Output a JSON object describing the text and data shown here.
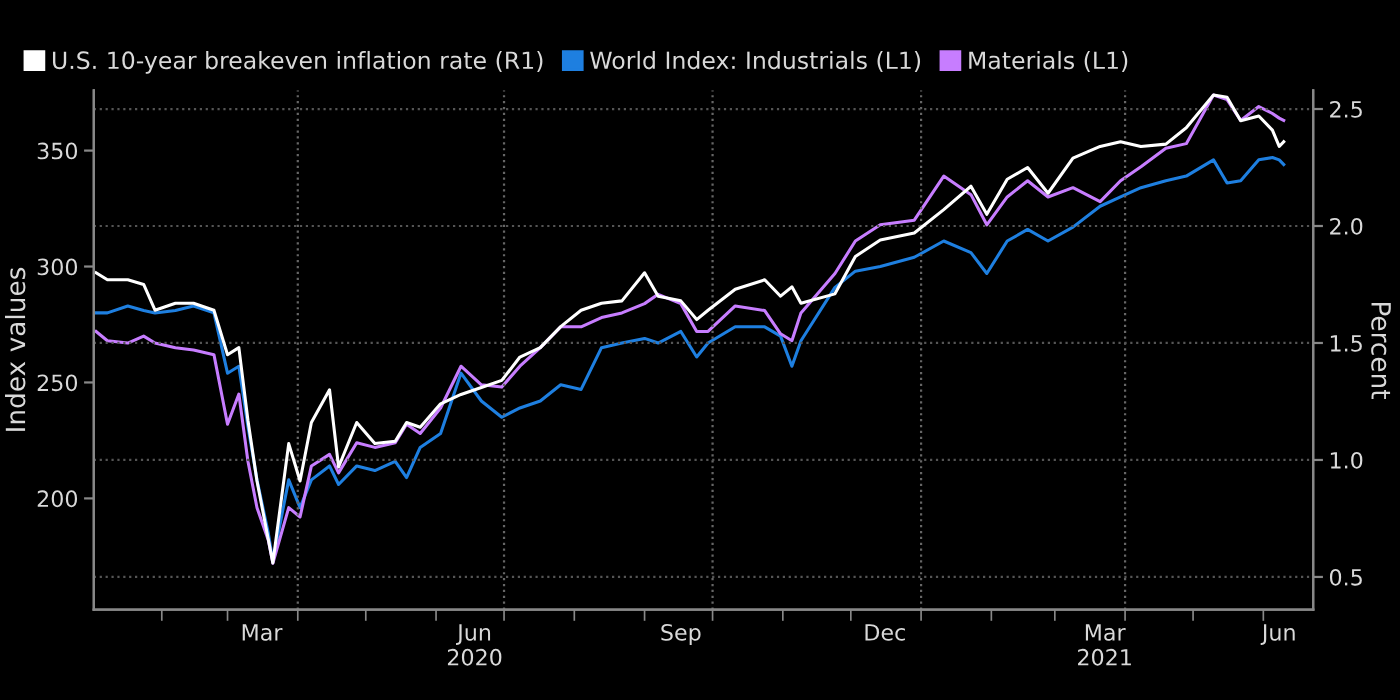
{
  "chart_data": {
    "type": "line",
    "ylabel": "Index values",
    "y2label": "Percent",
    "xlim": [
      "2020-01-02",
      "2021-06-23"
    ],
    "ylim": [
      152,
      376
    ],
    "yticks": [
      200,
      250,
      300,
      350
    ],
    "y2lim": [
      0.36,
      2.58
    ],
    "y2ticks": [
      0.5,
      {
        "value": 1,
        "label": "1.0"
      },
      1.5,
      {
        "value": 2,
        "label": "2.0"
      },
      2.5
    ],
    "xticks": [
      {
        "value": "2020-02-01",
        "label": null
      },
      {
        "value": "2020-03-01",
        "label": null
      },
      {
        "value": "2020-04-01",
        "label": null
      },
      {
        "value": "2020-05-01",
        "label": null
      },
      {
        "value": "2020-06-01",
        "label": null
      },
      {
        "value": "2020-07-01",
        "label": null
      },
      {
        "value": "2020-08-01",
        "label": null
      },
      {
        "value": "2020-09-01",
        "label": null
      },
      {
        "value": "2020-10-01",
        "label": null
      },
      {
        "value": "2020-11-01",
        "label": null
      },
      {
        "value": "2020-12-01",
        "label": null
      },
      {
        "value": "2021-01-01",
        "label": null
      },
      {
        "value": "2021-02-01",
        "label": null
      },
      {
        "value": "2021-03-01",
        "label": null
      },
      {
        "value": "2021-04-01",
        "label": null
      },
      {
        "value": "2021-05-01",
        "label": null
      },
      {
        "value": "2021-06-01",
        "label": null
      },
      {
        "value": "2020-03-16",
        "label": "Mar"
      },
      {
        "value": "2020-06-18",
        "label": "Jun\n2020"
      },
      {
        "value": "2020-09-17",
        "label": "Sep"
      },
      {
        "value": "2020-12-16",
        "label": "Dec"
      },
      {
        "value": "2021-03-23",
        "label": "Mar\n2021"
      },
      {
        "value": "2021-06-08",
        "label": "Jun"
      }
    ],
    "grid": "y",
    "legend": "top left",
    "marker": "none",
    "line_style": "solid",
    "ref_lines": [
      {
        "axis": "x",
        "value": "2020-04-01",
        "color": "#666666",
        "line_style": "dotted"
      },
      {
        "axis": "x",
        "value": "2020-07-01",
        "color": "#666666",
        "line_style": "dotted"
      },
      {
        "axis": "x",
        "value": "2020-10-01",
        "color": "#666666",
        "line_style": "dotted"
      },
      {
        "axis": "x",
        "value": "2021-01-01",
        "color": "#666666",
        "line_style": "dotted"
      },
      {
        "axis": "x",
        "value": "2021-04-01",
        "color": "#666666",
        "line_style": "dotted"
      }
    ],
    "x": [
      "2020-01-03",
      "2020-01-08",
      "2020-01-17",
      "2020-01-24",
      "2020-01-29",
      "2020-02-07",
      "2020-02-15",
      "2020-02-24",
      "2020-03-01",
      "2020-03-06",
      "2020-03-10",
      "2020-03-14",
      "2020-03-19",
      "2020-03-21",
      "2020-03-28",
      "2020-04-02",
      "2020-04-07",
      "2020-04-15",
      "2020-04-19",
      "2020-04-27",
      "2020-05-05",
      "2020-05-14",
      "2020-05-19",
      "2020-05-25",
      "2020-06-03",
      "2020-06-12",
      "2020-06-21",
      "2020-06-30",
      "2020-07-08",
      "2020-07-17",
      "2020-07-26",
      "2020-08-04",
      "2020-08-13",
      "2020-08-22",
      "2020-09-01",
      "2020-09-07",
      "2020-09-17",
      "2020-09-24",
      "2020-09-29",
      "2020-10-11",
      "2020-10-24",
      "2020-10-31",
      "2020-11-05",
      "2020-11-09",
      "2020-11-24",
      "2020-12-03",
      "2020-12-14",
      "2020-12-29",
      "2021-01-11",
      "2021-01-23",
      "2021-01-30",
      "2021-02-08",
      "2021-02-17",
      "2021-02-26",
      "2021-03-09",
      "2021-03-21",
      "2021-03-30",
      "2021-04-08",
      "2021-04-19",
      "2021-04-28",
      "2021-05-10",
      "2021-05-16",
      "2021-05-22",
      "2021-05-30",
      "2021-06-05",
      "2021-06-08",
      "2021-06-10"
    ],
    "series": [
      {
        "name": "U.S. 10-year breakeven inflation rate (R1)",
        "color": "#ffffff",
        "axis": "y2",
        "values": [
          1.8,
          1.77,
          1.77,
          1.75,
          1.64,
          1.67,
          1.67,
          1.64,
          1.45,
          1.48,
          1.17,
          0.91,
          0.66,
          0.56,
          1.07,
          0.91,
          1.16,
          1.3,
          0.97,
          1.16,
          1.07,
          1.08,
          1.16,
          1.14,
          1.24,
          1.28,
          1.31,
          1.34,
          1.44,
          1.48,
          1.57,
          1.64,
          1.67,
          1.68,
          1.8,
          1.7,
          1.68,
          1.6,
          1.64,
          1.73,
          1.77,
          1.7,
          1.74,
          1.67,
          1.71,
          1.87,
          1.94,
          1.97,
          2.07,
          2.17,
          2.05,
          2.2,
          2.25,
          2.14,
          2.29,
          2.34,
          2.36,
          2.34,
          2.35,
          2.42,
          2.56,
          2.55,
          2.45,
          2.47,
          2.41,
          2.34,
          2.36
        ]
      },
      {
        "name": "World Index: Industrials (L1)",
        "color": "#1e7fe0",
        "values": [
          280,
          280,
          283,
          281,
          280,
          281,
          283,
          280,
          254,
          257,
          231,
          208,
          185,
          173,
          208,
          196,
          208,
          214,
          206,
          214,
          212,
          216,
          209,
          222,
          228,
          254,
          242,
          235,
          239,
          242,
          249,
          247,
          265,
          267,
          269,
          267,
          272,
          261,
          267,
          274,
          274,
          270,
          257,
          268,
          291,
          298,
          300,
          304,
          311,
          306,
          297,
          311,
          316,
          311,
          317,
          326,
          330,
          334,
          337,
          339,
          346,
          336,
          337,
          346,
          347,
          346,
          344
        ]
      },
      {
        "name": "Materials (L1)",
        "color": "#c77dff",
        "values": [
          272,
          268,
          267,
          270,
          267,
          265,
          264,
          262,
          232,
          245,
          216,
          196,
          182,
          172,
          196,
          192,
          214,
          219,
          211,
          224,
          222,
          224,
          232,
          228,
          239,
          257,
          249,
          248,
          257,
          265,
          274,
          274,
          278,
          280,
          284,
          288,
          284,
          272,
          272,
          283,
          281,
          271,
          268,
          280,
          297,
          311,
          318,
          320,
          339,
          331,
          318,
          330,
          337,
          330,
          334,
          328,
          337,
          343,
          351,
          353,
          374,
          372,
          363,
          369,
          366,
          364,
          363
        ]
      }
    ]
  }
}
